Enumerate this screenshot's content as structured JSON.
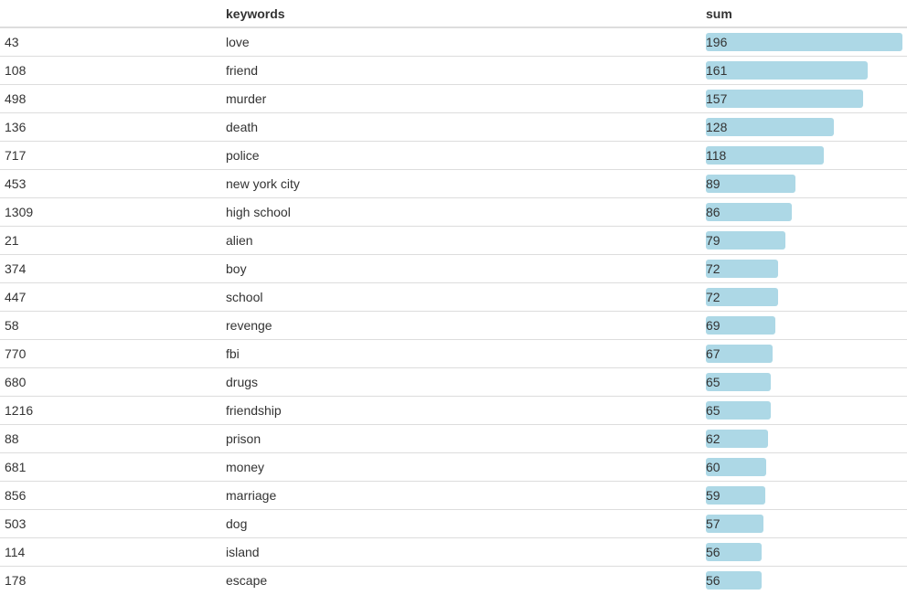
{
  "table": {
    "headers": {
      "index": "",
      "keywords": "keywords",
      "sum": "sum"
    },
    "bar_color": "#add8e6",
    "rows": [
      {
        "index": "43",
        "keyword": "love",
        "sum": 196
      },
      {
        "index": "108",
        "keyword": "friend",
        "sum": 161
      },
      {
        "index": "498",
        "keyword": "murder",
        "sum": 157
      },
      {
        "index": "136",
        "keyword": "death",
        "sum": 128
      },
      {
        "index": "717",
        "keyword": "police",
        "sum": 118
      },
      {
        "index": "453",
        "keyword": "new york city",
        "sum": 89
      },
      {
        "index": "1309",
        "keyword": "high school",
        "sum": 86
      },
      {
        "index": "21",
        "keyword": "alien",
        "sum": 79
      },
      {
        "index": "374",
        "keyword": "boy",
        "sum": 72
      },
      {
        "index": "447",
        "keyword": "school",
        "sum": 72
      },
      {
        "index": "58",
        "keyword": "revenge",
        "sum": 69
      },
      {
        "index": "770",
        "keyword": "fbi",
        "sum": 67
      },
      {
        "index": "680",
        "keyword": "drugs",
        "sum": 65
      },
      {
        "index": "1216",
        "keyword": "friendship",
        "sum": 65
      },
      {
        "index": "88",
        "keyword": "prison",
        "sum": 62
      },
      {
        "index": "681",
        "keyword": "money",
        "sum": 60
      },
      {
        "index": "856",
        "keyword": "marriage",
        "sum": 59
      },
      {
        "index": "503",
        "keyword": "dog",
        "sum": 57
      },
      {
        "index": "114",
        "keyword": "island",
        "sum": 56
      },
      {
        "index": "178",
        "keyword": "escape",
        "sum": 56
      }
    ]
  }
}
